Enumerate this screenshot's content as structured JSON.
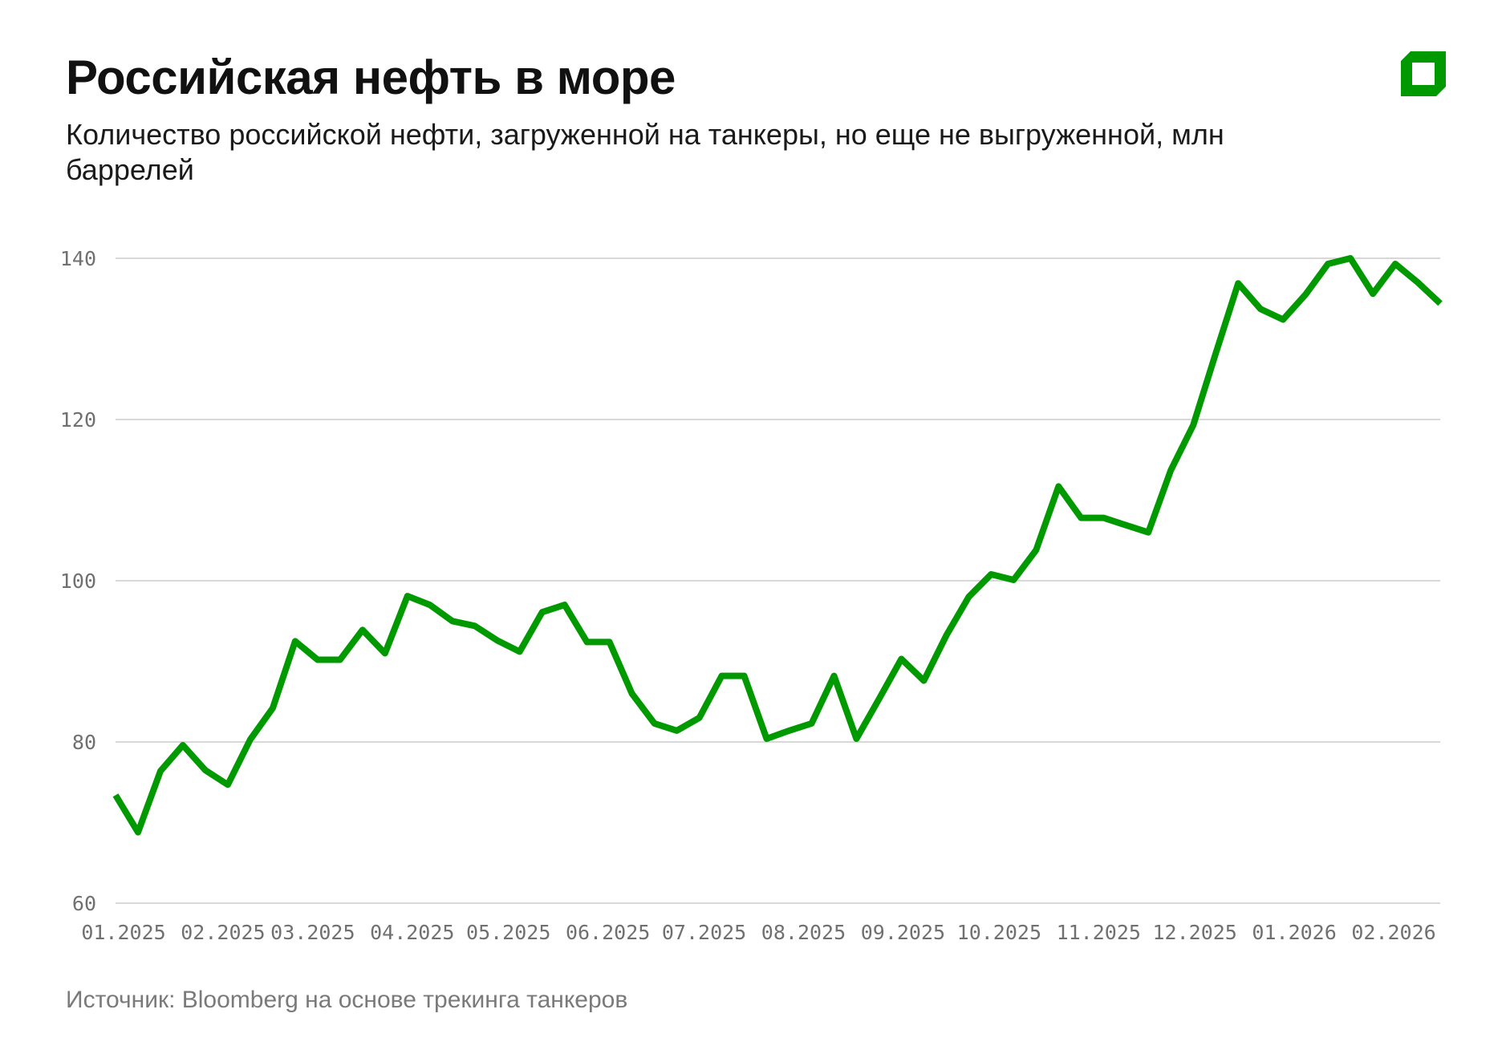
{
  "title": "Российская нефть в море",
  "subtitle": "Количество российской нефти, загруженной на танкеры, но еще не выгруженной, млн баррелей",
  "source": "Источник: Bloomberg на основе трекинга танкеров",
  "logo": {
    "icon": "green-square-logo-icon",
    "color": "#009900"
  },
  "colors": {
    "line": "#009900",
    "grid": "#cccccc",
    "tick_text": "#707070"
  },
  "chart_data": {
    "type": "line",
    "title": "Российская нефть в море",
    "ylabel": "",
    "xlabel": "",
    "ylim": [
      60,
      140
    ],
    "yticks": [
      60,
      80,
      100,
      120,
      140
    ],
    "xticks": [
      "01.2025",
      "02.2025",
      "03.2025",
      "04.2025",
      "05.2025",
      "06.2025",
      "07.2025",
      "08.2025",
      "09.2025",
      "10.2025",
      "11.2025",
      "12.2025",
      "01.2026",
      "02.2026"
    ],
    "grid": "horizontal",
    "x_start": "2024-12-31",
    "x_step_days": 7,
    "values": [
      73.4,
      68.8,
      76.4,
      79.6,
      76.5,
      74.7,
      80.3,
      84.2,
      92.5,
      90.2,
      90.2,
      93.9,
      91.0,
      98.1,
      97.0,
      95.0,
      94.4,
      92.6,
      91.2,
      96.1,
      97.0,
      92.4,
      92.4,
      86.0,
      82.3,
      81.4,
      83.0,
      88.2,
      88.2,
      80.4,
      81.4,
      82.3,
      88.2,
      80.4,
      85.3,
      90.3,
      87.6,
      93.2,
      98.0,
      100.8,
      100.1,
      103.8,
      111.7,
      107.8,
      107.8,
      106.9,
      106.0,
      113.7,
      119.3,
      128.2,
      136.9,
      133.7,
      132.4,
      135.5,
      139.3,
      140.0,
      135.6,
      139.3,
      137.0,
      134.4
    ]
  }
}
